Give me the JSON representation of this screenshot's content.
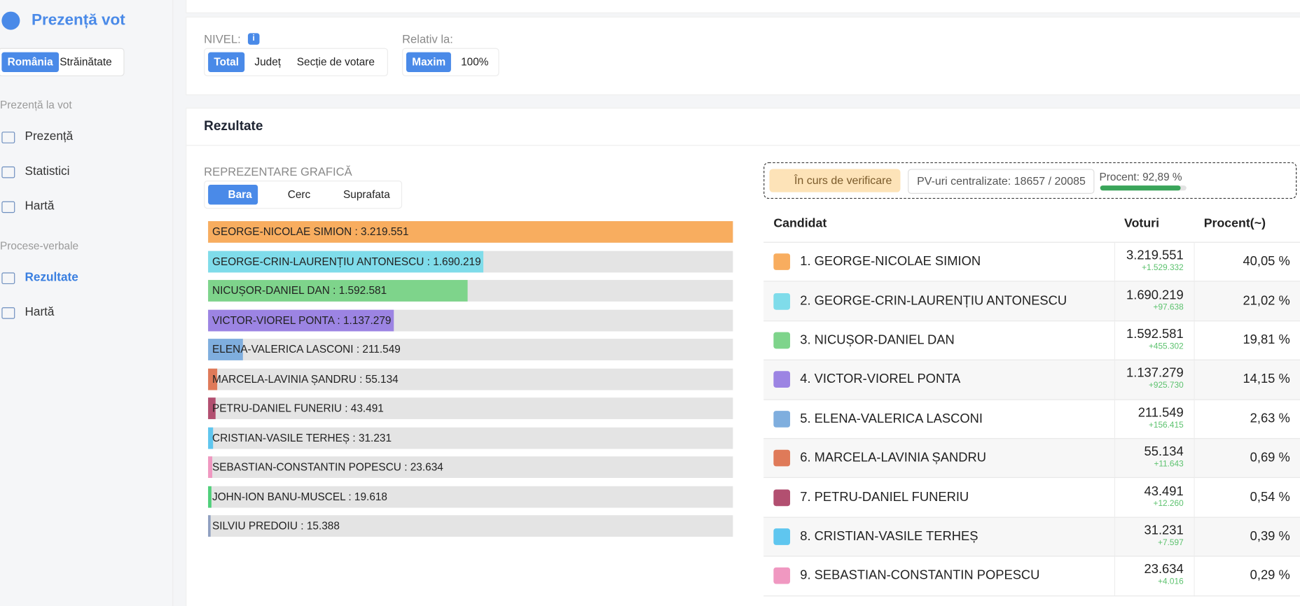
{
  "sidebar": {
    "brand": "Prezență vot",
    "tabs": [
      "România",
      "Străinătate"
    ],
    "sections": [
      {
        "title": "Prezență la vot",
        "items": [
          "Prezență",
          "Statistici",
          "Hartă"
        ]
      },
      {
        "title": "Procese-verbale",
        "items": [
          "Rezultate",
          "Hartă"
        ]
      }
    ]
  },
  "filters": {
    "level_label": "NIVEL:",
    "info": "i",
    "level_options": [
      "Total",
      "Județ",
      "Secție de votare"
    ],
    "relative_label": "Relativ la:",
    "relative_options": [
      "Maxim",
      "100%"
    ]
  },
  "results": {
    "title": "Rezultate",
    "chart_section_label": "REPREZENTARE GRAFICĂ",
    "chart_types": [
      "Bara",
      "Cerc",
      "Suprafata"
    ],
    "status": "În curs de verificare",
    "pv": "PV-uri centralizate: 18657 / 20085",
    "progress_label": "Procent: 92,89 %",
    "progress": 92.89
  },
  "chart_data": {
    "type": "bar",
    "orientation": "horizontal",
    "categories": [
      "GEORGE-NICOLAE SIMION : 3.219.551",
      "GEORGE-CRIN-LAURENȚIU ANTONESCU : 1.690.219",
      "NICUȘOR-DANIEL DAN : 1.592.581",
      "VICTOR-VIOREL PONTA : 1.137.279",
      "ELENA-VALERICA LASCONI : 211.549",
      "MARCELA-LAVINIA ȘANDRU : 55.134",
      "PETRU-DANIEL FUNERIU : 43.491",
      "CRISTIAN-VASILE TERHEȘ : 31.231",
      "SEBASTIAN-CONSTANTIN POPESCU : 23.634",
      "JOHN-ION BANU-MUSCEL : 19.618",
      "SILVIU PREDOIU : 15.388"
    ],
    "values": [
      3219551,
      1690219,
      1592581,
      1137279,
      211549,
      55134,
      43491,
      31231,
      23634,
      19618,
      15388
    ],
    "colors": [
      "#f8ad5f",
      "#7fdcea",
      "#7ed48b",
      "#9c84e3",
      "#7faede",
      "#df7a59",
      "#b24f70",
      "#5fc6ef",
      "#f098c1",
      "#4fd07a",
      "#8e9fc0"
    ]
  },
  "table": {
    "headers": [
      "Candidat",
      "Voturi",
      "Procent(~)"
    ],
    "rows": [
      [
        "1. GEORGE-NICOLAE SIMION",
        "3.219.551",
        "+1.529.332",
        "40,05 %"
      ],
      [
        "2. GEORGE-CRIN-LAURENȚIU ANTONESCU",
        "1.690.219",
        "+97.638",
        "21,02 %"
      ],
      [
        "3. NICUȘOR-DANIEL DAN",
        "1.592.581",
        "+455.302",
        "19,81 %"
      ],
      [
        "4. VICTOR-VIOREL PONTA",
        "1.137.279",
        "+925.730",
        "14,15 %"
      ],
      [
        "5. ELENA-VALERICA LASCONI",
        "211.549",
        "+156.415",
        "2,63 %"
      ],
      [
        "6. MARCELA-LAVINIA ȘANDRU",
        "55.134",
        "+11.643",
        "0,69 %"
      ],
      [
        "7. PETRU-DANIEL FUNERIU",
        "43.491",
        "+12.260",
        "0,54 %"
      ],
      [
        "8. CRISTIAN-VASILE TERHEȘ",
        "31.231",
        "+7.597",
        "0,39 %"
      ],
      [
        "9. SEBASTIAN-CONSTANTIN POPESCU",
        "23.634",
        "+4.016",
        "0,29 %"
      ]
    ]
  }
}
